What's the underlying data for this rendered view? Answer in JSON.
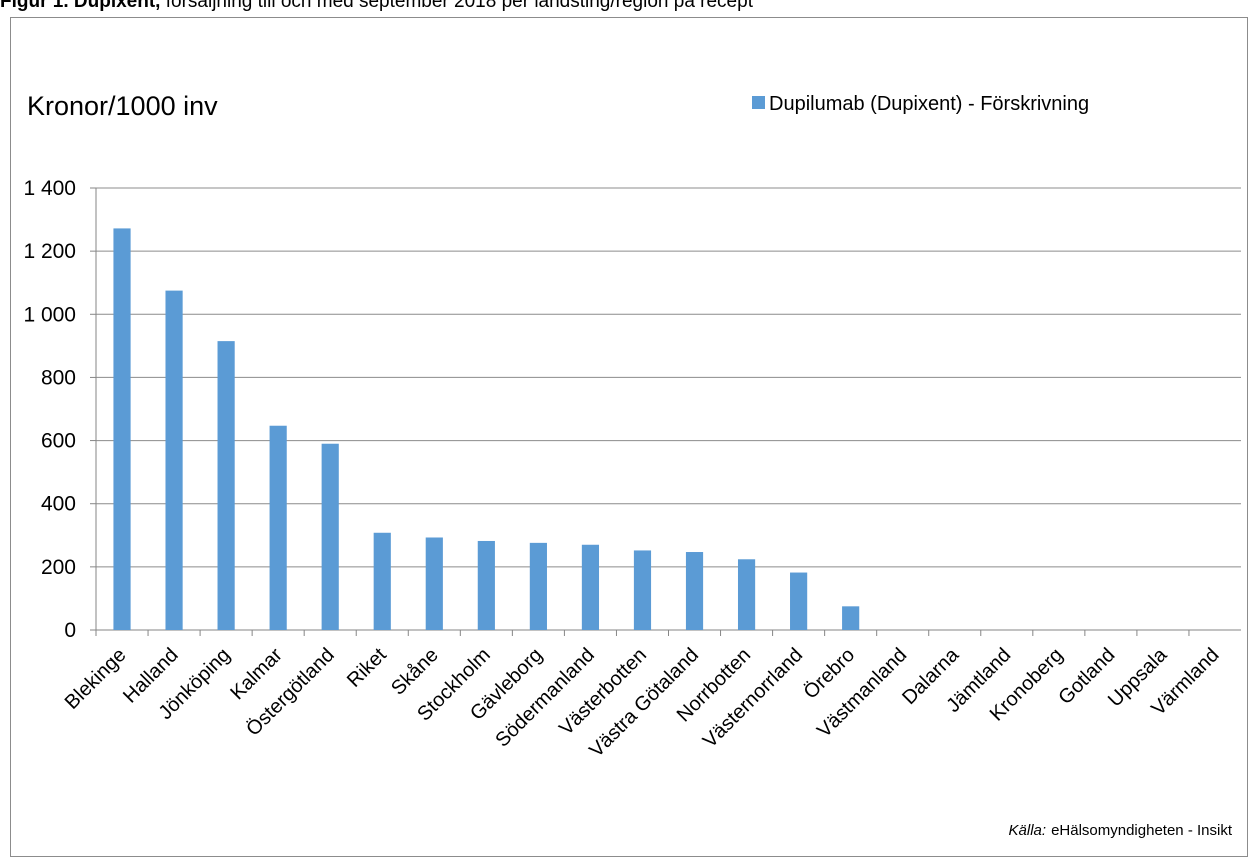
{
  "figure_title": {
    "label": "Figur 1. Dupixent,",
    "text": "försäljning till och med september 2018 per landsting/region på recept"
  },
  "chart_data": {
    "type": "bar",
    "ylabel": "Kronor/1000 inv",
    "ylim": [
      0,
      1400
    ],
    "yticks": [
      0,
      200,
      400,
      600,
      800,
      1000,
      1200,
      1400
    ],
    "ytick_labels": [
      "0",
      "200",
      "400",
      "600",
      "800",
      "1 000",
      "1 200",
      "1 400"
    ],
    "grid": true,
    "legend_position": "top-right",
    "categories": [
      "Blekinge",
      "Halland",
      "Jönköping",
      "Kalmar",
      "Östergötland",
      "Riket",
      "Skåne",
      "Stockholm",
      "Gävleborg",
      "Södermanland",
      "Västerbotten",
      "Västra Götaland",
      "Norrbotten",
      "Västernorrland",
      "Örebro",
      "Västmanland",
      "Dalarna",
      "Jämtland",
      "Kronoberg",
      "Gotland",
      "Uppsala",
      "Värmland"
    ],
    "series": [
      {
        "name": "Dupilumab (Dupixent) - Förskrivning",
        "color": "#5b9bd5",
        "values": [
          1272,
          1075,
          915,
          647,
          590,
          308,
          293,
          282,
          276,
          270,
          252,
          247,
          224,
          182,
          75,
          0,
          0,
          0,
          0,
          0,
          0,
          0
        ]
      }
    ],
    "source": {
      "label": "Källa:",
      "text": "eHälsomyndigheten - Insikt"
    }
  }
}
